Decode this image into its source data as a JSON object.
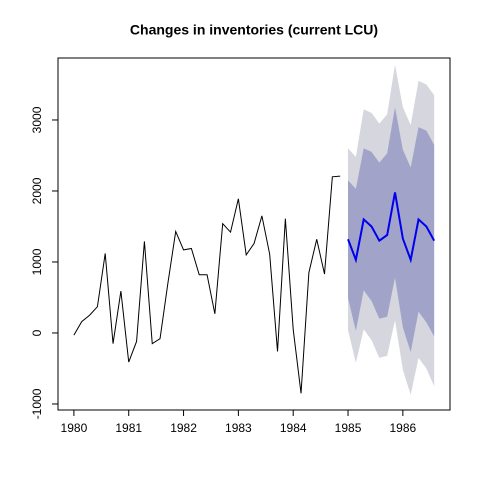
{
  "chart_data": {
    "type": "forecast",
    "title": "Changes in inventories (current LCU)",
    "xlim": [
      1979.71,
      1986.86
    ],
    "ylim": [
      -1085,
      3873
    ],
    "xticks": [
      1980,
      1981,
      1982,
      1983,
      1984,
      1985,
      1986
    ],
    "yticks": [
      -1000,
      0,
      1000,
      2000,
      3000
    ],
    "observed": {
      "color": "#000000",
      "x": [
        1980,
        1980.143,
        1980.286,
        1980.429,
        1980.571,
        1980.714,
        1980.857,
        1981,
        1981.143,
        1981.286,
        1981.429,
        1981.571,
        1981.714,
        1981.857,
        1982,
        1982.143,
        1982.286,
        1982.429,
        1982.571,
        1982.714,
        1982.857,
        1983,
        1983.143,
        1983.286,
        1983.429,
        1983.571,
        1983.714,
        1983.857,
        1984,
        1984.143,
        1984.286,
        1984.429,
        1984.571,
        1984.714,
        1984.857
      ],
      "values": [
        -30,
        160,
        250,
        370,
        1120,
        -150,
        590,
        -410,
        -120,
        1290,
        -150,
        -80,
        700,
        1430,
        1170,
        1190,
        820,
        820,
        270,
        1540,
        1420,
        1890,
        1100,
        1260,
        1650,
        1110,
        -260,
        1610,
        50,
        -850,
        850,
        1320,
        830,
        2200,
        2210
      ]
    },
    "forecast": {
      "color": "#0000ee",
      "color80": "#a1a4c8",
      "color95": "#d6d6de",
      "x": [
        1985,
        1985.143,
        1985.286,
        1985.429,
        1985.571,
        1985.714,
        1985.857,
        1986,
        1986.143,
        1986.286,
        1986.429,
        1986.571
      ],
      "mean": [
        1320,
        1030,
        1600,
        1500,
        1300,
        1380,
        1980,
        1330,
        1030,
        1600,
        1500,
        1300
      ],
      "lo80": [
        490,
        30,
        600,
        450,
        200,
        230,
        780,
        80,
        -270,
        300,
        150,
        -50
      ],
      "hi80": [
        2150,
        2030,
        2600,
        2550,
        2400,
        2530,
        3180,
        2580,
        2330,
        2900,
        2850,
        2650
      ],
      "lo95": [
        40,
        -420,
        50,
        -100,
        -350,
        -320,
        180,
        -520,
        -870,
        -350,
        -500,
        -750
      ],
      "hi95": [
        2600,
        2480,
        3150,
        3100,
        2950,
        3080,
        3780,
        3180,
        2930,
        3550,
        3500,
        3350
      ]
    }
  }
}
